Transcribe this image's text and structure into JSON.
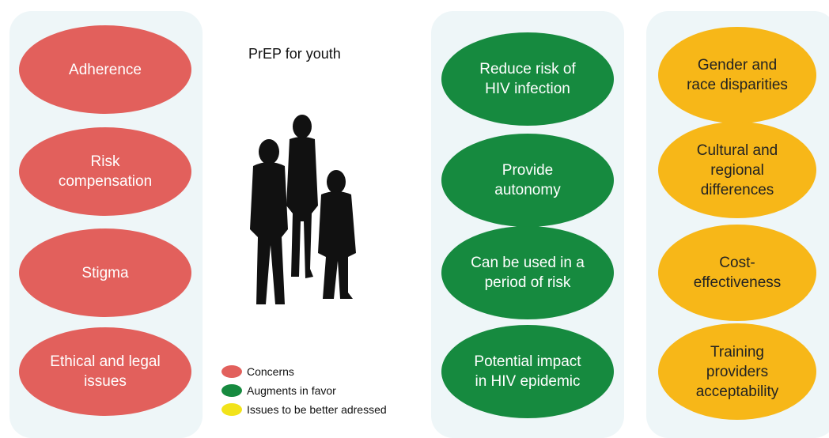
{
  "title": "PrEP for youth",
  "columns": [
    {
      "items": [
        "Adherence",
        "Risk compensation",
        "Stigma",
        "Ethical and legal issues"
      ]
    },
    {
      "items": [
        "Reduce risk of HIV infection",
        "Provide autonomy",
        "Can be used in a period of risk",
        "Potential impact in HIV epidemic"
      ]
    },
    {
      "items": [
        "Gender and race disparities",
        "Cultural and regional differences",
        "Cost-effectiveness",
        "Training providers acceptability"
      ]
    }
  ],
  "legend": [
    "Concerns",
    "Augments in favor",
    "Issues to be better adressed"
  ]
}
